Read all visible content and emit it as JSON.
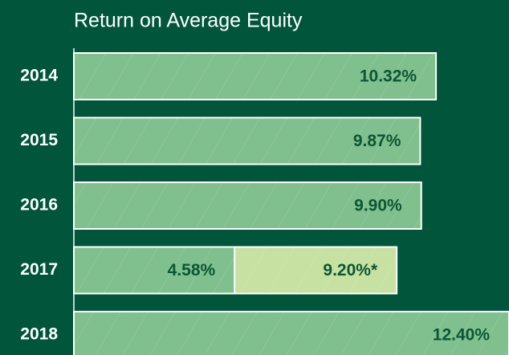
{
  "chart_data": {
    "type": "bar",
    "orientation": "horizontal",
    "title": "Return on Average Equity",
    "categories": [
      "2014",
      "2015",
      "2016",
      "2017",
      "2018"
    ],
    "xlim": [
      0,
      12.4
    ],
    "series": [
      {
        "color": "#c6e1a2",
        "values": [
          null,
          null,
          null,
          9.2,
          null
        ],
        "value_labels": [
          null,
          null,
          null,
          "9.20%*",
          null
        ]
      },
      {
        "color": "#80bf8e",
        "values": [
          10.32,
          9.87,
          9.9,
          4.58,
          12.4
        ],
        "value_labels": [
          "10.32%",
          "9.87%",
          "9.90%",
          "4.58%",
          "12.40%"
        ]
      }
    ]
  }
}
